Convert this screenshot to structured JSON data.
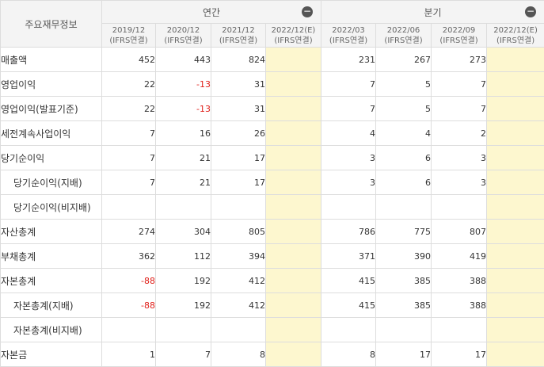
{
  "header": {
    "corner_label": "주요재무정보",
    "annual_label": "연간",
    "quarter_label": "분기",
    "collapse_glyph": "−",
    "periods": [
      {
        "date": "2019/12",
        "basis": "(IFRS연결)"
      },
      {
        "date": "2020/12",
        "basis": "(IFRS연결)"
      },
      {
        "date": "2021/12",
        "basis": "(IFRS연결)"
      },
      {
        "date": "2022/12(E)",
        "basis": "(IFRS연결)"
      },
      {
        "date": "2022/03",
        "basis": "(IFRS연결)"
      },
      {
        "date": "2022/06",
        "basis": "(IFRS연결)"
      },
      {
        "date": "2022/09",
        "basis": "(IFRS연결)"
      },
      {
        "date": "2022/12(E)",
        "basis": "(IFRS연결)"
      }
    ]
  },
  "colors": {
    "negative": "#e0201a",
    "estimate_bg": "#fdf7cf",
    "header_bg": "#f4f4f4",
    "border": "#dddddd"
  },
  "rows": [
    {
      "label": "매출액",
      "sub": false,
      "values": [
        "452",
        "443",
        "824",
        "",
        "231",
        "267",
        "273",
        ""
      ]
    },
    {
      "label": "영업이익",
      "sub": false,
      "values": [
        "22",
        "-13",
        "31",
        "",
        "7",
        "5",
        "7",
        ""
      ]
    },
    {
      "label": "영업이익(발표기준)",
      "sub": false,
      "values": [
        "22",
        "-13",
        "31",
        "",
        "7",
        "5",
        "7",
        ""
      ]
    },
    {
      "label": "세전계속사업이익",
      "sub": false,
      "values": [
        "7",
        "16",
        "26",
        "",
        "4",
        "4",
        "2",
        ""
      ]
    },
    {
      "label": "당기순이익",
      "sub": false,
      "values": [
        "7",
        "21",
        "17",
        "",
        "3",
        "6",
        "3",
        ""
      ]
    },
    {
      "label": "당기순이익(지배)",
      "sub": true,
      "values": [
        "7",
        "21",
        "17",
        "",
        "3",
        "6",
        "3",
        ""
      ]
    },
    {
      "label": "당기순이익(비지배)",
      "sub": true,
      "values": [
        "",
        "",
        "",
        "",
        "",
        "",
        "",
        ""
      ]
    },
    {
      "label": "자산총계",
      "sub": false,
      "values": [
        "274",
        "304",
        "805",
        "",
        "786",
        "775",
        "807",
        ""
      ]
    },
    {
      "label": "부채총계",
      "sub": false,
      "values": [
        "362",
        "112",
        "394",
        "",
        "371",
        "390",
        "419",
        ""
      ]
    },
    {
      "label": "자본총계",
      "sub": false,
      "values": [
        "-88",
        "192",
        "412",
        "",
        "415",
        "385",
        "388",
        ""
      ]
    },
    {
      "label": "자본총계(지배)",
      "sub": true,
      "values": [
        "-88",
        "192",
        "412",
        "",
        "415",
        "385",
        "388",
        ""
      ]
    },
    {
      "label": "자본총계(비지배)",
      "sub": true,
      "values": [
        "",
        "",
        "",
        "",
        "",
        "",
        "",
        ""
      ]
    },
    {
      "label": "자본금",
      "sub": false,
      "values": [
        "1",
        "7",
        "8",
        "",
        "8",
        "17",
        "17",
        ""
      ]
    }
  ]
}
